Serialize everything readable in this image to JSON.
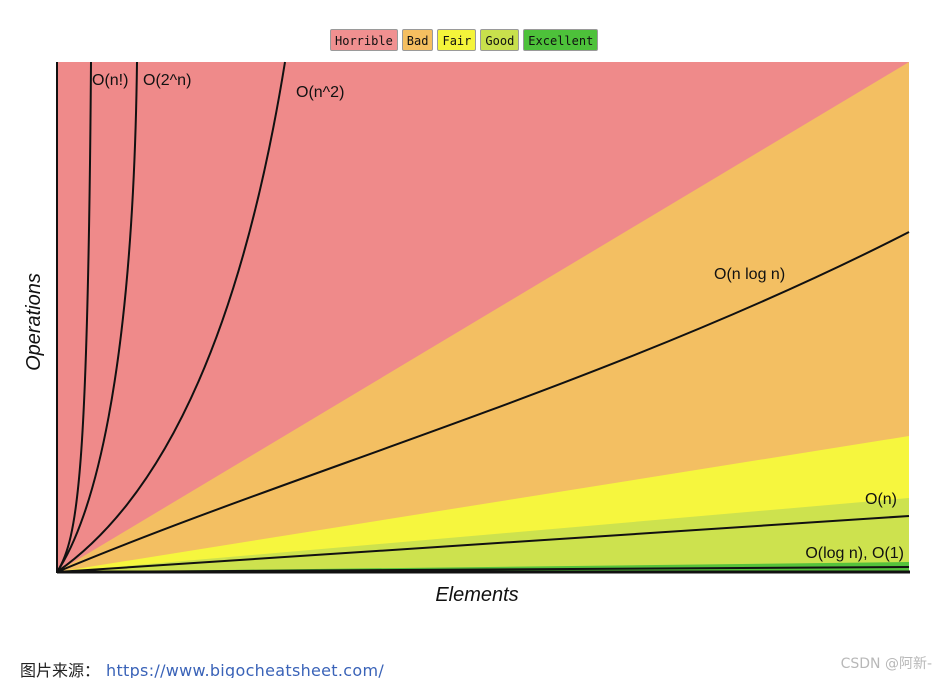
{
  "legend": [
    {
      "label": "Horrible",
      "color": "#f09090"
    },
    {
      "label": "Bad",
      "color": "#f5bf60"
    },
    {
      "label": "Fair",
      "color": "#f4f43a"
    },
    {
      "label": "Good",
      "color": "#c8e04c"
    },
    {
      "label": "Excellent",
      "color": "#4dc13a"
    }
  ],
  "chart_data": {
    "type": "line",
    "xlabel": "Elements",
    "ylabel": "Operations",
    "grid": false,
    "legend_position": "top-center",
    "regions": [
      {
        "name": "Horrible",
        "color": "#ef8a8a"
      },
      {
        "name": "Bad",
        "color": "#f3bf62"
      },
      {
        "name": "Fair",
        "color": "#f6f63e"
      },
      {
        "name": "Good",
        "color": "#cde24e"
      },
      {
        "name": "Excellent",
        "color": "#55c23c"
      }
    ],
    "series": [
      {
        "name": "O(n!)",
        "label": "O(n!)"
      },
      {
        "name": "O(2^n)",
        "label": "O(2^n)"
      },
      {
        "name": "O(n^2)",
        "label": "O(n^2)"
      },
      {
        "name": "O(n log n)",
        "label": "O(n log n)"
      },
      {
        "name": "O(n)",
        "label": "O(n)"
      },
      {
        "name": "O(log n), O(1)",
        "label": "O(log n), O(1)"
      }
    ]
  },
  "footer": {
    "source_label": "图片来源：",
    "source_url": "https://www.bigocheatsheet.com/"
  },
  "watermark": "CSDN @阿新-"
}
